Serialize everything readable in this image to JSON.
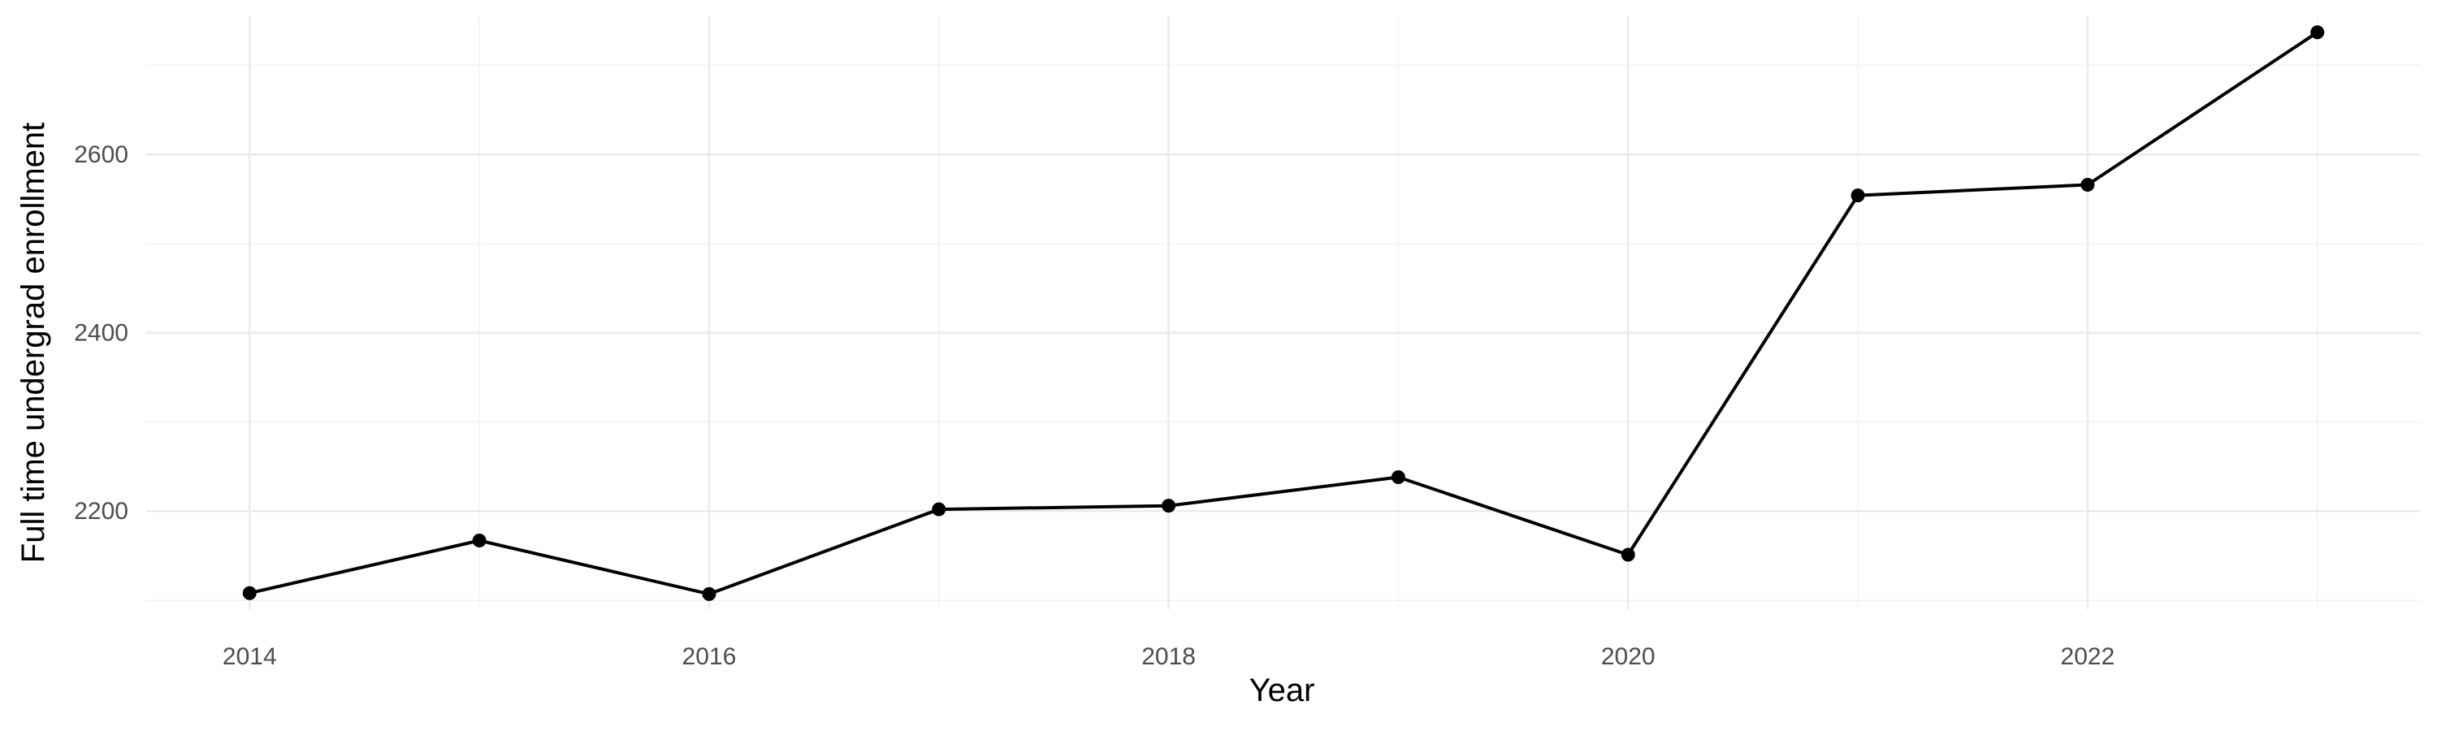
{
  "chart_data": {
    "type": "line",
    "title": "",
    "xlabel": "Year",
    "ylabel": "Full time undergrad enrollment",
    "x": [
      2014,
      2015,
      2016,
      2017,
      2018,
      2019,
      2020,
      2021,
      2022,
      2023
    ],
    "series": [
      {
        "values": [
          2108,
          2167,
          2107,
          2202,
          2206,
          2238,
          2151,
          2554,
          2566,
          2737
        ]
      }
    ],
    "xlim": [
      2013.55,
      2023.45
    ],
    "ylim": [
      2090,
      2755
    ],
    "x_ticks": [
      2014,
      2016,
      2018,
      2020,
      2022
    ],
    "y_ticks": [
      2200,
      2400,
      2600
    ],
    "x_minor_ticks": [
      2015,
      2017,
      2019,
      2021,
      2023
    ],
    "y_minor_ticks": [
      2100,
      2300,
      2500,
      2700
    ],
    "grid": true,
    "legend": "none",
    "colors": {
      "line": "#000000",
      "point": "#000000",
      "grid_major": "#ebebeb",
      "grid_minor": "#f3f3f3",
      "tick_text": "#4d4d4d",
      "background": "#ffffff"
    }
  }
}
